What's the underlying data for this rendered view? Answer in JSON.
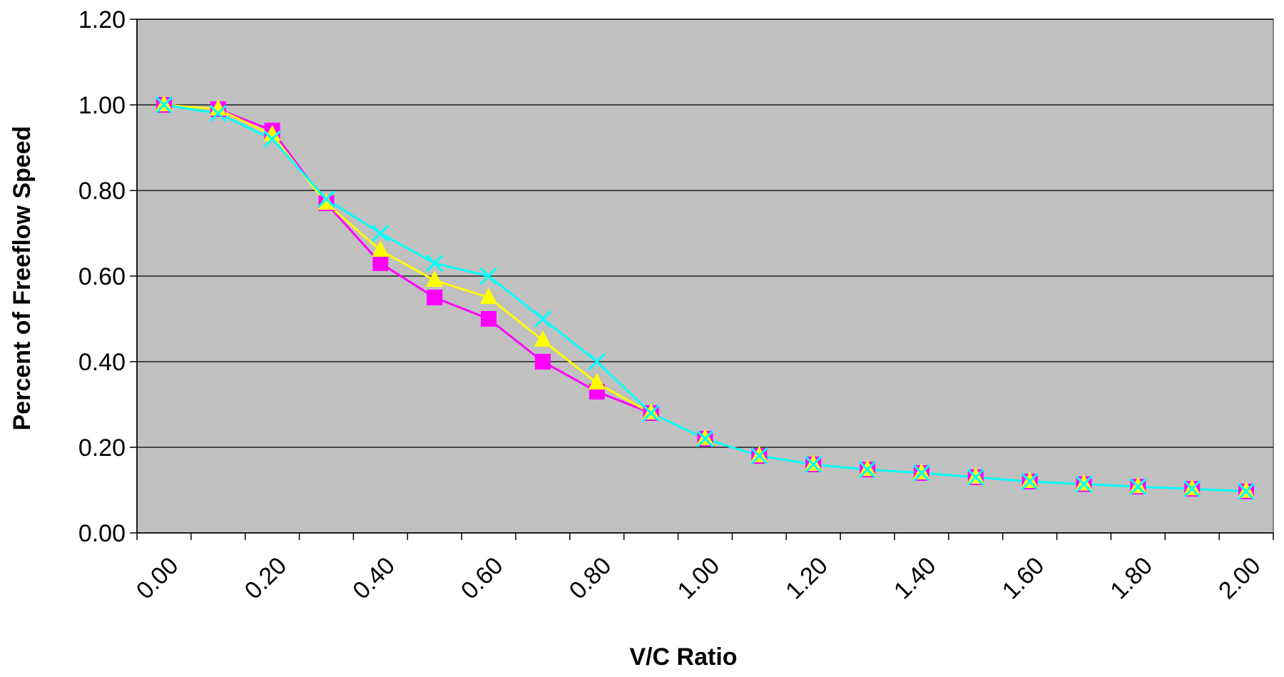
{
  "chart_data": {
    "type": "line",
    "title": "",
    "xlabel": "V/C Ratio",
    "ylabel": "Percent of Freeflow Speed",
    "ylim": [
      0,
      1.2
    ],
    "y_ticks": [
      "0.00",
      "0.20",
      "0.40",
      "0.60",
      "0.80",
      "1.00",
      "1.20"
    ],
    "x_tick_labels": [
      "0.00",
      "0.20",
      "0.40",
      "0.60",
      "0.80",
      "1.00",
      "1.20",
      "1.40",
      "1.60",
      "1.80",
      "2.00"
    ],
    "x_category_range": [
      0,
      2.1
    ],
    "grid": "horizontal",
    "legend": "none",
    "x": [
      0.05,
      0.15,
      0.25,
      0.35,
      0.45,
      0.55,
      0.65,
      0.75,
      0.85,
      0.95,
      1.05,
      1.15,
      1.25,
      1.35,
      1.45,
      1.55,
      1.65,
      1.75,
      1.85,
      1.95,
      2.05
    ],
    "series": [
      {
        "color": "#ff00ff",
        "marker": "square",
        "values": [
          1.0,
          0.99,
          0.94,
          0.77,
          0.63,
          0.55,
          0.5,
          0.4,
          0.33,
          0.28,
          0.22,
          0.18,
          0.16,
          0.148,
          0.14,
          0.13,
          0.12,
          0.114,
          0.108,
          0.103,
          0.097
        ]
      },
      {
        "color": "#ffff00",
        "marker": "triangle",
        "values": [
          1.0,
          0.99,
          0.93,
          0.77,
          0.66,
          0.59,
          0.55,
          0.45,
          0.35,
          0.28,
          0.22,
          0.18,
          0.16,
          0.148,
          0.14,
          0.13,
          0.12,
          0.114,
          0.108,
          0.103,
          0.097
        ]
      },
      {
        "color": "#00ffff",
        "marker": "x",
        "values": [
          1.0,
          0.98,
          0.92,
          0.78,
          0.7,
          0.63,
          0.6,
          0.5,
          0.4,
          0.28,
          0.22,
          0.18,
          0.16,
          0.148,
          0.14,
          0.13,
          0.12,
          0.114,
          0.108,
          0.103,
          0.097
        ]
      }
    ],
    "colors": {
      "plot_background": "#c0c0c0",
      "gridline": "#000000",
      "axis": "#000000"
    }
  }
}
